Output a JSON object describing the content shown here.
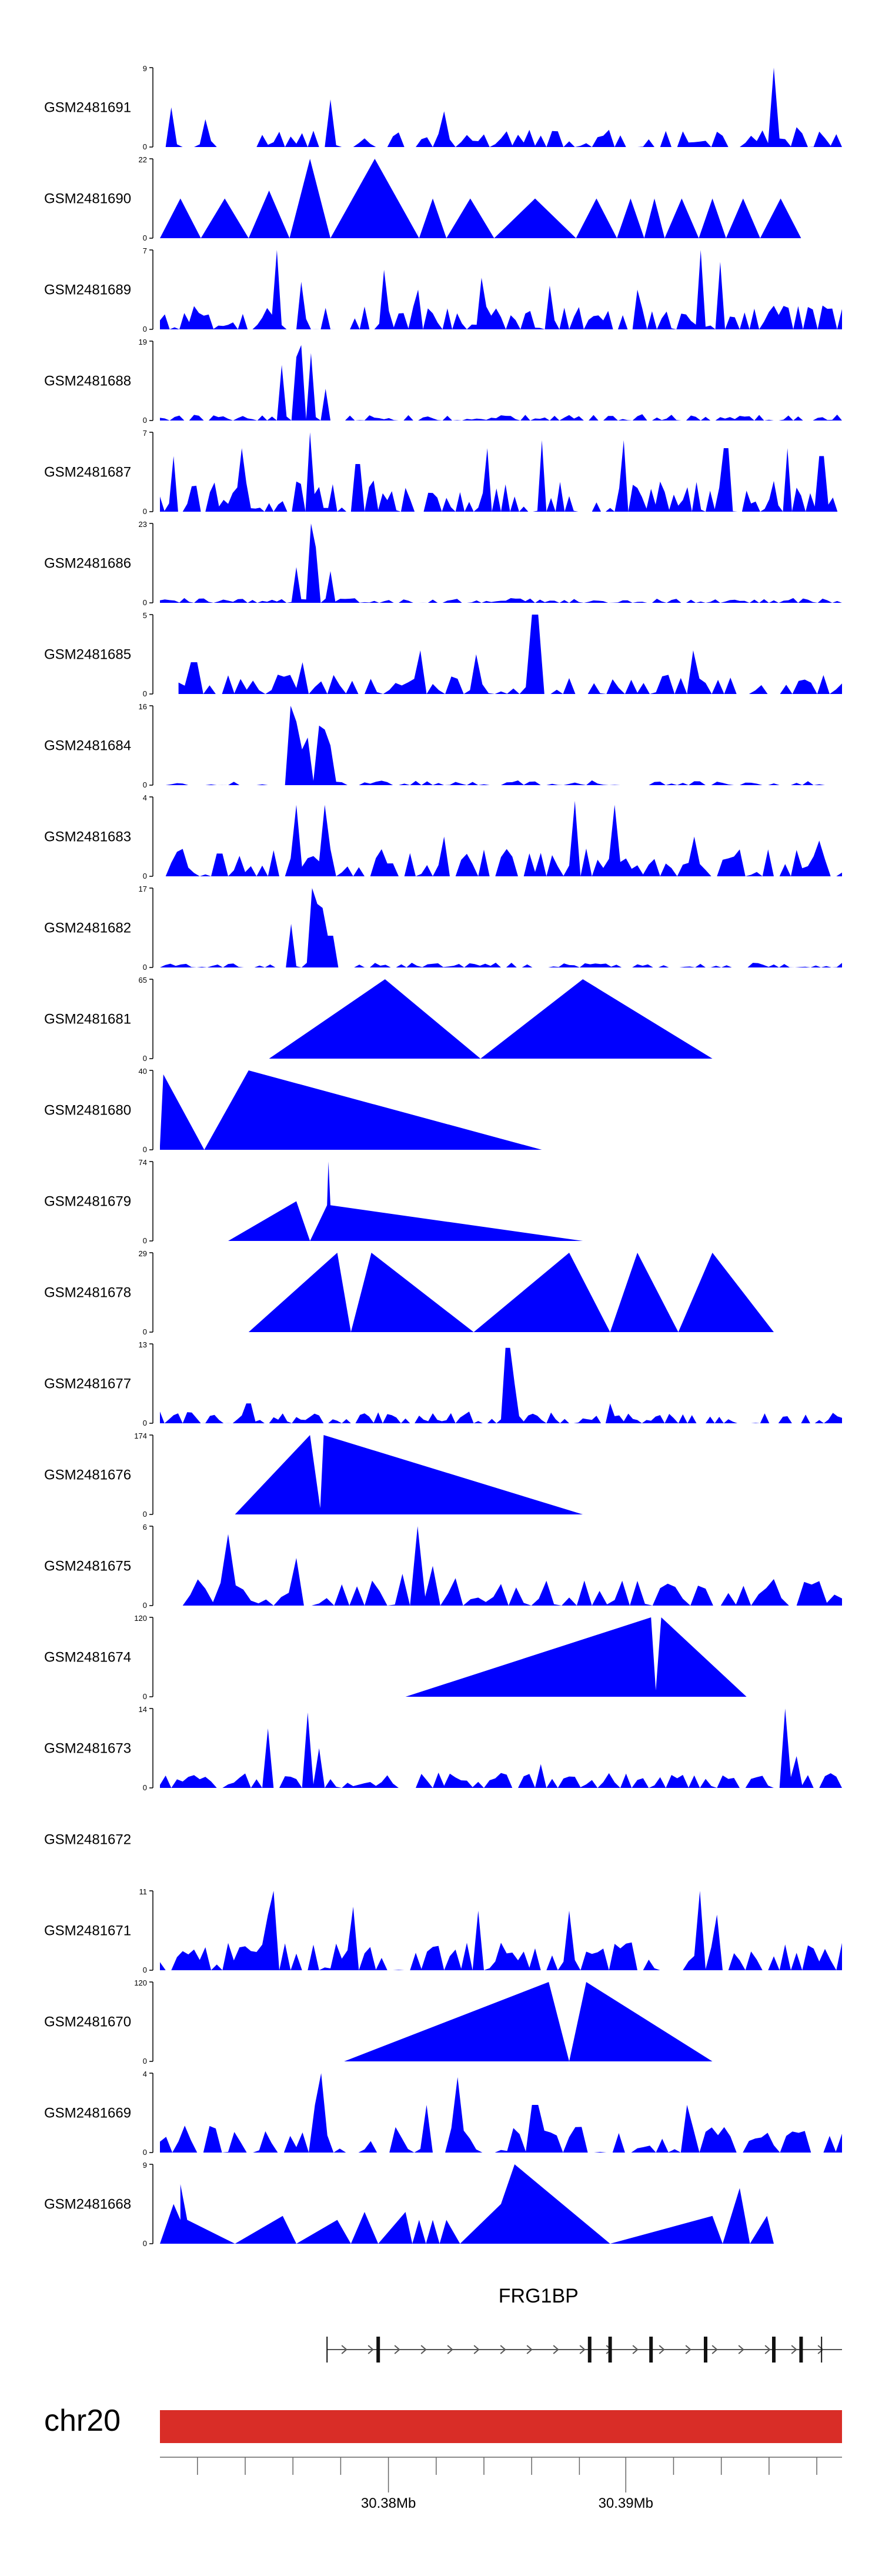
{
  "colors": {
    "track_fill": "#0000ff",
    "ideogram": "#d92d27",
    "axis": "#000000"
  },
  "chart_data": {
    "type": "area",
    "title": "",
    "tracks": [
      {
        "name": "GSM2481691",
        "ymax": "9",
        "tick_low": "0",
        "peaks": [
          [
            0.02,
            0.5
          ],
          [
            0.065,
            0.35
          ],
          [
            0.25,
            0.6
          ],
          [
            0.42,
            0.45
          ],
          [
            0.9,
            1.0
          ],
          [
            0.93,
            0.25
          ]
        ],
        "floor": 0.22,
        "density": 120,
        "gaps": []
      },
      {
        "name": "GSM2481690",
        "ymax": "22",
        "tick_low": "0",
        "peaks": [],
        "floor": 0,
        "density": 0,
        "tris": [
          [
            0.0,
            0.06,
            0.5
          ],
          [
            0.06,
            0.13,
            0.5
          ],
          [
            0.13,
            0.19,
            0.6
          ],
          [
            0.19,
            0.25,
            1.0
          ],
          [
            0.25,
            0.38,
            1.0
          ],
          [
            0.38,
            0.42,
            0.5
          ],
          [
            0.42,
            0.49,
            0.5
          ],
          [
            0.49,
            0.61,
            0.5
          ],
          [
            0.61,
            0.67,
            0.5
          ],
          [
            0.67,
            0.71,
            0.5
          ],
          [
            0.71,
            0.74,
            0.5
          ],
          [
            0.74,
            0.79,
            0.5
          ],
          [
            0.79,
            0.83,
            0.5
          ],
          [
            0.83,
            0.88,
            0.5
          ],
          [
            0.88,
            0.94,
            0.5
          ]
        ]
      },
      {
        "name": "GSM2481689",
        "ymax": "7",
        "tick_low": "0",
        "peaks": [
          [
            0.17,
            1.0
          ],
          [
            0.21,
            0.6
          ],
          [
            0.33,
            0.75
          ],
          [
            0.38,
            0.5
          ],
          [
            0.47,
            0.65
          ],
          [
            0.57,
            0.55
          ],
          [
            0.7,
            0.5
          ],
          [
            0.79,
            1.0
          ],
          [
            0.82,
            0.85
          ],
          [
            0.97,
            0.3
          ]
        ],
        "floor": 0.3,
        "density": 140,
        "gaps": []
      },
      {
        "name": "GSM2481688",
        "ymax": "19",
        "tick_low": "0",
        "peaks": [
          [
            0.18,
            0.7
          ],
          [
            0.2,
            0.8
          ],
          [
            0.21,
            0.95
          ],
          [
            0.22,
            0.85
          ],
          [
            0.24,
            0.4
          ]
        ],
        "floor": 0.08,
        "density": 140,
        "gaps": []
      },
      {
        "name": "GSM2481687",
        "ymax": "7",
        "tick_low": "0",
        "peaks": [
          [
            0.02,
            0.7
          ],
          [
            0.12,
            0.8
          ],
          [
            0.22,
            1.0
          ],
          [
            0.29,
            0.6
          ],
          [
            0.48,
            0.8
          ],
          [
            0.56,
            0.9
          ],
          [
            0.68,
            0.9
          ],
          [
            0.83,
            0.8
          ],
          [
            0.92,
            0.8
          ],
          [
            0.97,
            0.7
          ]
        ],
        "floor": 0.4,
        "density": 150,
        "gaps": []
      },
      {
        "name": "GSM2481686",
        "ymax": "23",
        "tick_low": "0",
        "peaks": [
          [
            0.2,
            0.45
          ],
          [
            0.22,
            1.0
          ],
          [
            0.23,
            0.7
          ],
          [
            0.25,
            0.4
          ]
        ],
        "floor": 0.06,
        "density": 140,
        "gaps": []
      },
      {
        "name": "GSM2481685",
        "ymax": "5",
        "tick_low": "0",
        "peaks": [
          [
            0.05,
            0.4
          ],
          [
            0.55,
            1.0
          ],
          [
            0.21,
            0.4
          ],
          [
            0.38,
            0.55
          ],
          [
            0.46,
            0.5
          ],
          [
            0.78,
            0.55
          ]
        ],
        "floor": 0.25,
        "density": 110,
        "gaps": [
          [
            0,
            0.02
          ]
        ]
      },
      {
        "name": "GSM2481684",
        "ymax": "16",
        "tick_low": "0",
        "peaks": [
          [
            0.19,
            1.0
          ],
          [
            0.2,
            0.8
          ],
          [
            0.21,
            0.45
          ],
          [
            0.22,
            0.6
          ],
          [
            0.23,
            0.75
          ],
          [
            0.24,
            0.7
          ],
          [
            0.25,
            0.5
          ]
        ],
        "floor": 0.06,
        "density": 120,
        "gaps": []
      },
      {
        "name": "GSM2481683",
        "ymax": "4",
        "tick_low": "0",
        "peaks": [
          [
            0.2,
            0.9
          ],
          [
            0.24,
            0.9
          ],
          [
            0.42,
            0.5
          ],
          [
            0.61,
            0.95
          ],
          [
            0.67,
            0.9
          ],
          [
            0.78,
            0.5
          ],
          [
            0.97,
            0.45
          ]
        ],
        "floor": 0.35,
        "density": 120,
        "gaps": []
      },
      {
        "name": "GSM2481682",
        "ymax": "17",
        "tick_low": "0",
        "peaks": [
          [
            0.19,
            0.55
          ],
          [
            0.22,
            1.0
          ],
          [
            0.23,
            0.8
          ],
          [
            0.24,
            0.75
          ],
          [
            0.25,
            0.4
          ]
        ],
        "floor": 0.06,
        "density": 130,
        "gaps": []
      },
      {
        "name": "GSM2481681",
        "ymax": "65",
        "tick_low": "0",
        "peaks": [],
        "floor": 0,
        "density": 0,
        "tris": [
          [
            0.16,
            0.33,
            1.0
          ],
          [
            0.33,
            0.47,
            0.0
          ],
          [
            0.47,
            0.62,
            1.0
          ],
          [
            0.62,
            0.81,
            0.0
          ]
        ],
        "polys": [
          [
            [
              0.16,
              0
            ],
            [
              0.33,
              1.0
            ],
            [
              0.47,
              0
            ],
            [
              0.62,
              1.0
            ],
            [
              0.81,
              0
            ]
          ]
        ]
      },
      {
        "name": "GSM2481680",
        "ymax": "40",
        "tick_low": "0",
        "peaks": [],
        "floor": 0,
        "density": 0,
        "polys": [
          [
            [
              0.0,
              0.05
            ],
            [
              0.005,
              0.95
            ],
            [
              0.065,
              0.0
            ],
            [
              0.13,
              1.0
            ],
            [
              0.56,
              0.0
            ]
          ]
        ]
      },
      {
        "name": "GSM2481679",
        "ymax": "74",
        "tick_low": "0",
        "peaks": [],
        "floor": 0,
        "density": 0,
        "polys": [
          [
            [
              0.1,
              0
            ],
            [
              0.2,
              0.5
            ],
            [
              0.22,
              0.0
            ],
            [
              0.245,
              0.45
            ],
            [
              0.247,
              1.0
            ],
            [
              0.25,
              0.45
            ],
            [
              0.62,
              0.0
            ]
          ]
        ]
      },
      {
        "name": "GSM2481678",
        "ymax": "29",
        "tick_low": "0",
        "peaks": [],
        "floor": 0,
        "density": 0,
        "polys": [
          [
            [
              0.13,
              0
            ],
            [
              0.26,
              1.0
            ],
            [
              0.28,
              0.0
            ],
            [
              0.31,
              1.0
            ],
            [
              0.46,
              0.0
            ],
            [
              0.6,
              1.0
            ],
            [
              0.66,
              0.0
            ],
            [
              0.7,
              1.0
            ],
            [
              0.76,
              0.0
            ],
            [
              0.81,
              1.0
            ],
            [
              0.9,
              0.0
            ]
          ]
        ]
      },
      {
        "name": "GSM2481677",
        "ymax": "13",
        "tick_low": "0",
        "peaks": [
          [
            0.51,
            0.95
          ],
          [
            0.52,
            0.5
          ],
          [
            0.13,
            0.25
          ],
          [
            0.66,
            0.25
          ]
        ],
        "floor": 0.15,
        "density": 150,
        "gaps": []
      },
      {
        "name": "GSM2481676",
        "ymax": "174",
        "tick_low": "0",
        "peaks": [],
        "floor": 0,
        "density": 0,
        "polys": [
          [
            [
              0.11,
              0
            ],
            [
              0.22,
              1.0
            ],
            [
              0.235,
              0.08
            ],
            [
              0.24,
              1.0
            ],
            [
              0.62,
              0.0
            ]
          ]
        ]
      },
      {
        "name": "GSM2481675",
        "ymax": "6",
        "tick_low": "0",
        "peaks": [
          [
            0.1,
            0.9
          ],
          [
            0.2,
            0.6
          ],
          [
            0.38,
            1.0
          ],
          [
            0.4,
            0.5
          ],
          [
            0.36,
            0.4
          ]
        ],
        "floor": 0.35,
        "density": 90,
        "gaps": [
          [
            0,
            0.03
          ]
        ]
      },
      {
        "name": "GSM2481674",
        "ymax": "120",
        "tick_low": "0",
        "peaks": [],
        "floor": 0,
        "density": 0,
        "polys": [
          [
            [
              0.36,
              0
            ],
            [
              0.72,
              1.0
            ],
            [
              0.727,
              0.08
            ],
            [
              0.735,
              1.0
            ],
            [
              0.86,
              0.0
            ]
          ]
        ]
      },
      {
        "name": "GSM2481673",
        "ymax": "14",
        "tick_low": "0",
        "peaks": [
          [
            0.16,
            0.75
          ],
          [
            0.22,
            0.95
          ],
          [
            0.23,
            0.5
          ],
          [
            0.92,
            1.0
          ],
          [
            0.93,
            0.4
          ],
          [
            0.56,
            0.3
          ]
        ],
        "floor": 0.2,
        "density": 120,
        "gaps": []
      },
      {
        "name": "GSM2481672",
        "ymax": "",
        "tick_low": "",
        "peaks": [],
        "floor": 0,
        "density": 0,
        "empty": true
      },
      {
        "name": "GSM2481671",
        "ymax": "11",
        "tick_low": "0",
        "peaks": [
          [
            0.17,
            1.0
          ],
          [
            0.16,
            0.7
          ],
          [
            0.28,
            0.8
          ],
          [
            0.47,
            0.75
          ],
          [
            0.6,
            0.75
          ],
          [
            0.79,
            1.0
          ],
          [
            0.82,
            0.7
          ]
        ],
        "floor": 0.35,
        "density": 120,
        "gaps": []
      },
      {
        "name": "GSM2481670",
        "ymax": "120",
        "tick_low": "0",
        "peaks": [],
        "floor": 0,
        "density": 0,
        "polys": [
          [
            [
              0.27,
              0
            ],
            [
              0.57,
              1.0
            ],
            [
              0.6,
              0.0
            ],
            [
              0.625,
              1.0
            ],
            [
              0.81,
              0.0
            ]
          ]
        ]
      },
      {
        "name": "GSM2481669",
        "ymax": "4",
        "tick_low": "0",
        "peaks": [
          [
            0.24,
            1.0
          ],
          [
            0.23,
            0.6
          ],
          [
            0.44,
            0.95
          ],
          [
            0.39,
            0.6
          ],
          [
            0.55,
            0.6
          ],
          [
            0.77,
            0.6
          ]
        ],
        "floor": 0.35,
        "density": 110,
        "gaps": []
      },
      {
        "name": "GSM2481668",
        "ymax": "9",
        "tick_low": "0",
        "peaks": [],
        "floor": 0,
        "density": 0,
        "polys": [
          [
            [
              0.0,
              0
            ],
            [
              0.02,
              0.5
            ],
            [
              0.03,
              0.3
            ],
            [
              0.03,
              0.75
            ],
            [
              0.04,
              0.3
            ],
            [
              0.11,
              0.0
            ],
            [
              0.18,
              0.35
            ],
            [
              0.2,
              0.0
            ],
            [
              0.26,
              0.3
            ],
            [
              0.28,
              0.0
            ],
            [
              0.3,
              0.4
            ],
            [
              0.32,
              0.0
            ],
            [
              0.36,
              0.4
            ],
            [
              0.37,
              0.0
            ],
            [
              0.38,
              0.3
            ],
            [
              0.39,
              0.0
            ],
            [
              0.4,
              0.3
            ],
            [
              0.41,
              0.0
            ],
            [
              0.42,
              0.3
            ],
            [
              0.44,
              0.0
            ],
            [
              0.5,
              0.5
            ],
            [
              0.52,
              1.0
            ],
            [
              0.66,
              0.0
            ],
            [
              0.81,
              0.35
            ],
            [
              0.825,
              0.0
            ],
            [
              0.85,
              0.7
            ],
            [
              0.865,
              0.0
            ],
            [
              0.89,
              0.35
            ],
            [
              0.9,
              0.0
            ],
            [
              0.94,
              0.0
            ]
          ]
        ]
      }
    ],
    "gene": {
      "name": "FRG1BP",
      "start": 0.245,
      "end": 1.0,
      "exons": [
        0.245,
        0.32,
        0.63,
        0.66,
        0.72,
        0.8,
        0.9,
        0.94,
        0.97
      ]
    },
    "ideogram": {
      "chromosome": "chr20"
    },
    "axis": {
      "ticks": [
        {
          "pos": 0.335,
          "label": "30.38Mb"
        },
        {
          "pos": 0.683,
          "label": "30.39Mb"
        }
      ],
      "minor_ticks": [
        0.055,
        0.125,
        0.195,
        0.265,
        0.405,
        0.475,
        0.545,
        0.615,
        0.753,
        0.823,
        0.893,
        0.963
      ]
    }
  }
}
